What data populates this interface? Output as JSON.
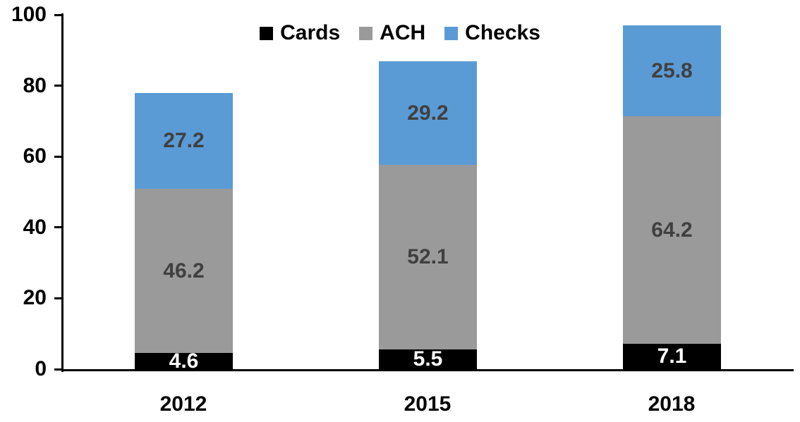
{
  "chart_data": {
    "type": "bar",
    "stacked": true,
    "title": "",
    "xlabel": "",
    "ylabel": "",
    "categories": [
      "2012",
      "2015",
      "2018"
    ],
    "series": [
      {
        "name": "Cards",
        "color": "#000000",
        "label_color": "#FFFFFF",
        "values": [
          4.6,
          5.5,
          7.1
        ]
      },
      {
        "name": "ACH",
        "color": "#9A9A9A",
        "label_color": "#404040",
        "values": [
          46.2,
          52.1,
          64.2
        ]
      },
      {
        "name": "Checks",
        "color": "#5B9BD5",
        "label_color": "#404040",
        "values": [
          27.2,
          29.2,
          25.8
        ]
      }
    ],
    "totals": [
      78.0,
      86.8,
      97.1
    ],
    "ylim": [
      0,
      100
    ],
    "yticks": [
      0,
      20,
      40,
      60,
      80,
      100
    ],
    "grid": false,
    "legend_position": "top",
    "axis_color": "#000000"
  }
}
